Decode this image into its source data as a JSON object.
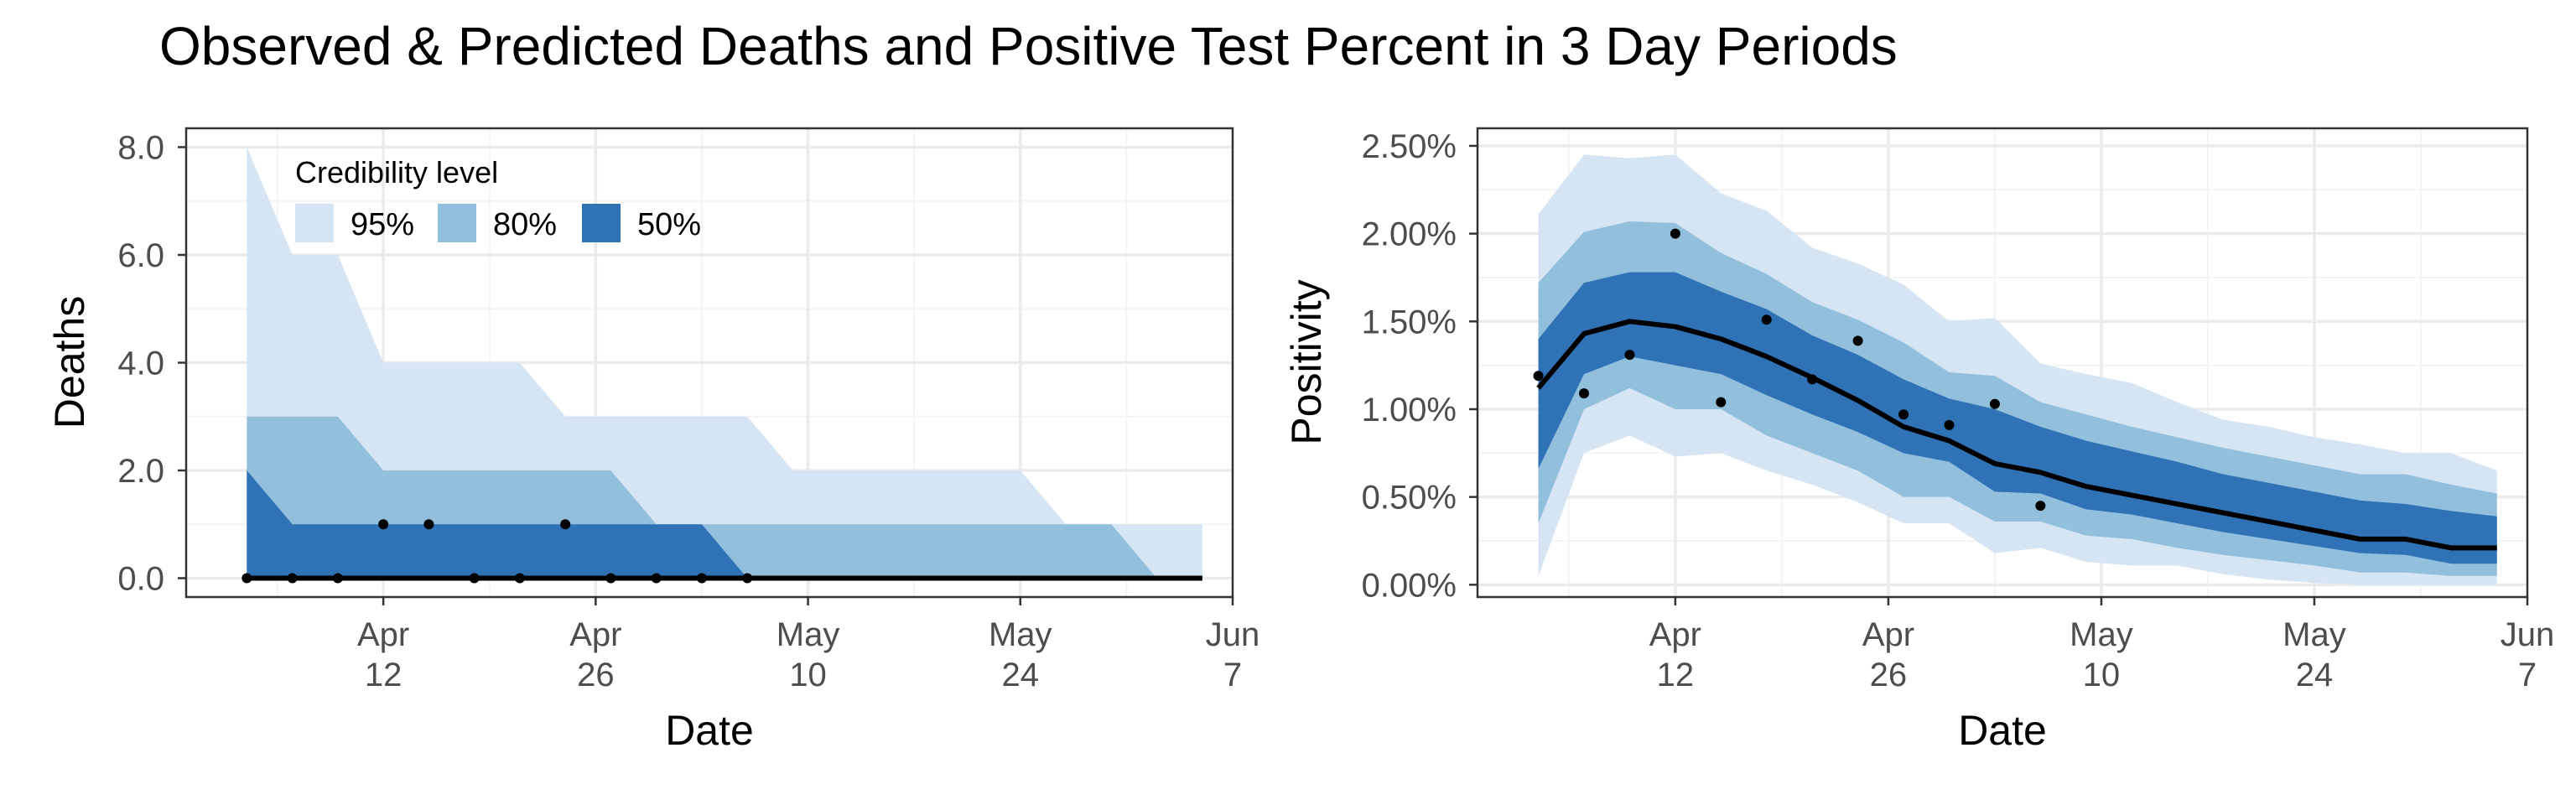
{
  "figure": {
    "title": "Observed & Predicted Deaths and Positive Test Percent in 3 Day Periods"
  },
  "colors": {
    "ci95": "#d6e5f4",
    "ci80": "#91bfdc",
    "ci50": "#2f72b6",
    "median": "#000000",
    "points": "#000000",
    "grid_major": "#ebebeb",
    "grid_minor": "#f4f4f4",
    "panel_border": "#333333",
    "tick_text": "#4d4d4d"
  },
  "legend": {
    "title": "Credibility level",
    "items": [
      {
        "label": "95%",
        "color_key": "ci95"
      },
      {
        "label": "80%",
        "color_key": "ci80"
      },
      {
        "label": "50%",
        "color_key": "ci50"
      }
    ],
    "placement": "top-left inside left panel"
  },
  "chart_data": [
    {
      "type": "area",
      "title": "",
      "xlabel": "Date",
      "ylabel": "Deaths",
      "grid": true,
      "xlim": [
        "2020-03-30",
        "2020-06-07"
      ],
      "ylim": [
        -0.35,
        8.35
      ],
      "x_ticks": [
        {
          "date": "2020-04-12",
          "label": [
            "Apr",
            "12"
          ]
        },
        {
          "date": "2020-04-26",
          "label": [
            "Apr",
            "26"
          ]
        },
        {
          "date": "2020-05-10",
          "label": [
            "May",
            "10"
          ]
        },
        {
          "date": "2020-05-24",
          "label": [
            "May",
            "24"
          ]
        },
        {
          "date": "2020-06-07",
          "label": [
            "Jun",
            "7"
          ]
        }
      ],
      "y_ticks": [
        {
          "value": 0,
          "label": "0.0"
        },
        {
          "value": 2,
          "label": "2.0"
        },
        {
          "value": 4,
          "label": "4.0"
        },
        {
          "value": 6,
          "label": "6.0"
        },
        {
          "value": 8,
          "label": "8.0"
        }
      ],
      "x": [
        "2020-04-03",
        "2020-04-06",
        "2020-04-09",
        "2020-04-12",
        "2020-04-15",
        "2020-04-18",
        "2020-04-21",
        "2020-04-24",
        "2020-04-27",
        "2020-04-30",
        "2020-05-03",
        "2020-05-06",
        "2020-05-09",
        "2020-05-12",
        "2020-05-15",
        "2020-05-18",
        "2020-05-21",
        "2020-05-24",
        "2020-05-27",
        "2020-05-30",
        "2020-06-02",
        "2020-06-05"
      ],
      "ribbons": {
        "ci95": {
          "lower": [
            0,
            0,
            0,
            0,
            0,
            0,
            0,
            0,
            0,
            0,
            0,
            0,
            0,
            0,
            0,
            0,
            0,
            0,
            0,
            0,
            0,
            0
          ],
          "upper": [
            8,
            6,
            6,
            4,
            4,
            4,
            4,
            3,
            3,
            3,
            3,
            3,
            2,
            2,
            2,
            2,
            2,
            2,
            1,
            1,
            1,
            1
          ]
        },
        "ci80": {
          "lower": [
            0,
            0,
            0,
            0,
            0,
            0,
            0,
            0,
            0,
            0,
            0,
            0,
            0,
            0,
            0,
            0,
            0,
            0,
            0,
            0,
            0,
            0
          ],
          "upper": [
            3,
            3,
            3,
            2,
            2,
            2,
            2,
            2,
            2,
            1,
            1,
            1,
            1,
            1,
            1,
            1,
            1,
            1,
            1,
            1,
            0,
            0
          ]
        },
        "ci50": {
          "lower": [
            0,
            0,
            0,
            0,
            0,
            0,
            0,
            0,
            0,
            0,
            0,
            0,
            0,
            0,
            0,
            0,
            0,
            0,
            0,
            0,
            0,
            0
          ],
          "upper": [
            2,
            1,
            1,
            1,
            1,
            1,
            1,
            1,
            1,
            1,
            1,
            0,
            0,
            0,
            0,
            0,
            0,
            0,
            0,
            0,
            0,
            0
          ]
        }
      },
      "median": [
        0,
        0,
        0,
        0,
        0,
        0,
        0,
        0,
        0,
        0,
        0,
        0,
        0,
        0,
        0,
        0,
        0,
        0,
        0,
        0,
        0,
        0
      ],
      "observed": [
        {
          "x": "2020-04-03",
          "y": 0
        },
        {
          "x": "2020-04-06",
          "y": 0
        },
        {
          "x": "2020-04-09",
          "y": 0
        },
        {
          "x": "2020-04-12",
          "y": 1
        },
        {
          "x": "2020-04-15",
          "y": 1
        },
        {
          "x": "2020-04-18",
          "y": 0
        },
        {
          "x": "2020-04-21",
          "y": 0
        },
        {
          "x": "2020-04-24",
          "y": 1
        },
        {
          "x": "2020-04-27",
          "y": 0
        },
        {
          "x": "2020-04-30",
          "y": 0
        },
        {
          "x": "2020-05-03",
          "y": 0
        },
        {
          "x": "2020-05-06",
          "y": 0
        }
      ]
    },
    {
      "type": "area",
      "title": "",
      "xlabel": "Date",
      "ylabel": "Positivity",
      "grid": true,
      "xlim": [
        "2020-03-30",
        "2020-06-07"
      ],
      "ylim": [
        -0.0007,
        0.026
      ],
      "x_ticks": [
        {
          "date": "2020-04-12",
          "label": [
            "Apr",
            "12"
          ]
        },
        {
          "date": "2020-04-26",
          "label": [
            "Apr",
            "26"
          ]
        },
        {
          "date": "2020-05-10",
          "label": [
            "May",
            "10"
          ]
        },
        {
          "date": "2020-05-24",
          "label": [
            "May",
            "24"
          ]
        },
        {
          "date": "2020-06-07",
          "label": [
            "Jun",
            "7"
          ]
        }
      ],
      "y_ticks": [
        {
          "value": 0.0,
          "label": "0.00%"
        },
        {
          "value": 0.005,
          "label": "0.50%"
        },
        {
          "value": 0.01,
          "label": "1.00%"
        },
        {
          "value": 0.015,
          "label": "1.50%"
        },
        {
          "value": 0.02,
          "label": "2.00%"
        },
        {
          "value": 0.025,
          "label": "2.50%"
        }
      ],
      "x": [
        "2020-04-03",
        "2020-04-06",
        "2020-04-09",
        "2020-04-12",
        "2020-04-15",
        "2020-04-18",
        "2020-04-21",
        "2020-04-24",
        "2020-04-27",
        "2020-04-30",
        "2020-05-03",
        "2020-05-06",
        "2020-05-09",
        "2020-05-12",
        "2020-05-15",
        "2020-05-18",
        "2020-05-21",
        "2020-05-24",
        "2020-05-27",
        "2020-05-30",
        "2020-06-02",
        "2020-06-05"
      ],
      "ribbons": {
        "ci95": {
          "lower": [
            0.0005,
            0.0075,
            0.0085,
            0.0073,
            0.0075,
            0.0065,
            0.0057,
            0.0047,
            0.0035,
            0.0035,
            0.0018,
            0.0021,
            0.0013,
            0.0011,
            0.0011,
            0.0006,
            0.0003,
            0.0001,
            0.0,
            0.0,
            0.0,
            0.0
          ],
          "upper": [
            0.0211,
            0.0245,
            0.0243,
            0.0245,
            0.0223,
            0.0213,
            0.0192,
            0.0183,
            0.0171,
            0.015,
            0.0152,
            0.0126,
            0.012,
            0.0115,
            0.0104,
            0.0094,
            0.009,
            0.0084,
            0.008,
            0.0075,
            0.0075,
            0.0065
          ]
        },
        "ci80": {
          "lower": [
            0.0035,
            0.01,
            0.0112,
            0.01,
            0.01,
            0.0085,
            0.0075,
            0.0065,
            0.005,
            0.005,
            0.0036,
            0.0036,
            0.0028,
            0.0026,
            0.0021,
            0.0017,
            0.0014,
            0.0011,
            0.0007,
            0.0007,
            0.0005,
            0.0005
          ],
          "upper": [
            0.0172,
            0.0201,
            0.0207,
            0.0206,
            0.0189,
            0.0177,
            0.0161,
            0.0151,
            0.0138,
            0.0121,
            0.0119,
            0.0104,
            0.0097,
            0.009,
            0.0084,
            0.0078,
            0.0073,
            0.0068,
            0.0063,
            0.0063,
            0.0057,
            0.0052
          ]
        },
        "ci50": {
          "lower": [
            0.0066,
            0.012,
            0.013,
            0.0125,
            0.012,
            0.0108,
            0.0097,
            0.0087,
            0.0075,
            0.007,
            0.0053,
            0.0052,
            0.0043,
            0.004,
            0.0035,
            0.003,
            0.0026,
            0.0022,
            0.0018,
            0.0017,
            0.0012,
            0.0012
          ],
          "upper": [
            0.014,
            0.0172,
            0.0178,
            0.0178,
            0.0167,
            0.0157,
            0.0142,
            0.0131,
            0.0117,
            0.0106,
            0.01,
            0.009,
            0.0082,
            0.0076,
            0.007,
            0.0063,
            0.0058,
            0.0053,
            0.0048,
            0.0046,
            0.0042,
            0.0039
          ]
        }
      },
      "median": [
        0.0112,
        0.0143,
        0.015,
        0.0147,
        0.014,
        0.013,
        0.0118,
        0.0105,
        0.009,
        0.0082,
        0.0069,
        0.0064,
        0.0056,
        0.0051,
        0.0046,
        0.0041,
        0.0036,
        0.0031,
        0.0026,
        0.0026,
        0.0021,
        0.0021
      ],
      "observed": [
        {
          "x": "2020-04-03",
          "y": 0.0119
        },
        {
          "x": "2020-04-06",
          "y": 0.0109
        },
        {
          "x": "2020-04-09",
          "y": 0.0131
        },
        {
          "x": "2020-04-12",
          "y": 0.02
        },
        {
          "x": "2020-04-15",
          "y": 0.0104
        },
        {
          "x": "2020-04-18",
          "y": 0.0151
        },
        {
          "x": "2020-04-21",
          "y": 0.0117
        },
        {
          "x": "2020-04-24",
          "y": 0.0139
        },
        {
          "x": "2020-04-27",
          "y": 0.0097
        },
        {
          "x": "2020-04-30",
          "y": 0.0091
        },
        {
          "x": "2020-05-03",
          "y": 0.0103
        },
        {
          "x": "2020-05-06",
          "y": 0.0045
        }
      ]
    }
  ]
}
